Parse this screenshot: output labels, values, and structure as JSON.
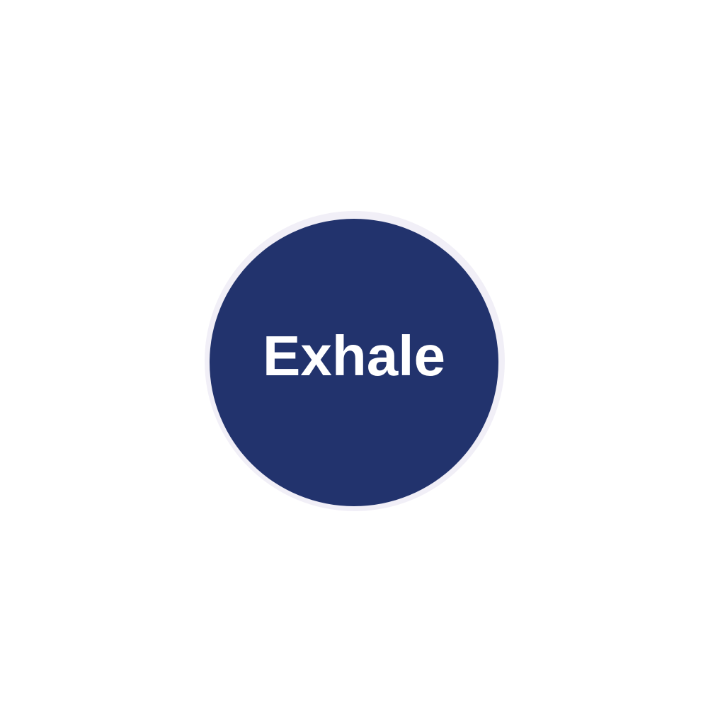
{
  "breathing": {
    "phase_label": "Exhale"
  },
  "colors": {
    "circle_fill": "#22336d",
    "ring": "#f1eff7",
    "background": "#ffffff",
    "label_text": "#ffffff"
  }
}
